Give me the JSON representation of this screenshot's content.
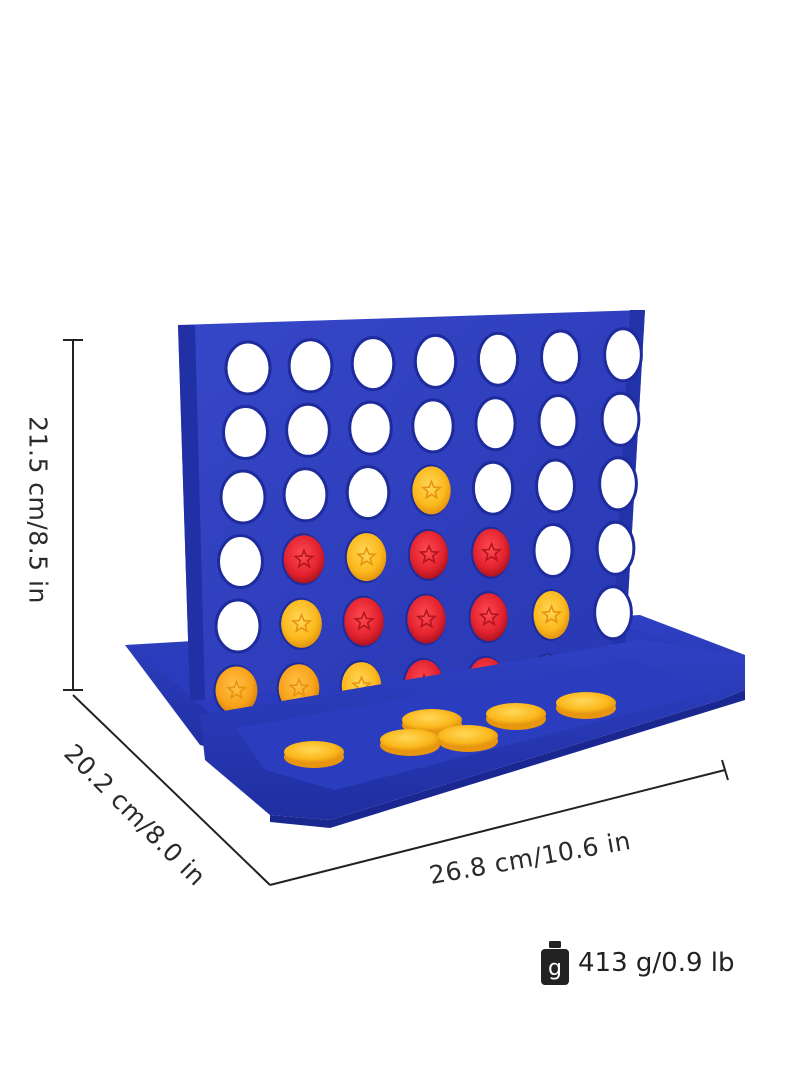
{
  "dimensions": {
    "height": "21.5 cm/8.5 in",
    "depth": "20.2 cm/8.0 in",
    "width": "26.8 cm/10.6 in",
    "weight": "413 g/0.9 lb",
    "weight_icon_letter": "g"
  },
  "product": {
    "name_icon": "connect-four-game",
    "board_color": "#2f3fbf",
    "tray_color": "#2536b0",
    "red_disc_color": "#e3232f",
    "yellow_disc_color": "#fbb81c",
    "orange_disc_color": "#f9a21a",
    "columns": 7,
    "rows": 6,
    "grid": [
      "EEEEEEE",
      "EEEEEEE",
      "EEEYEEE",
      "ERYRREE",
      "EYRRRYE",
      "OOYRRYE"
    ]
  }
}
